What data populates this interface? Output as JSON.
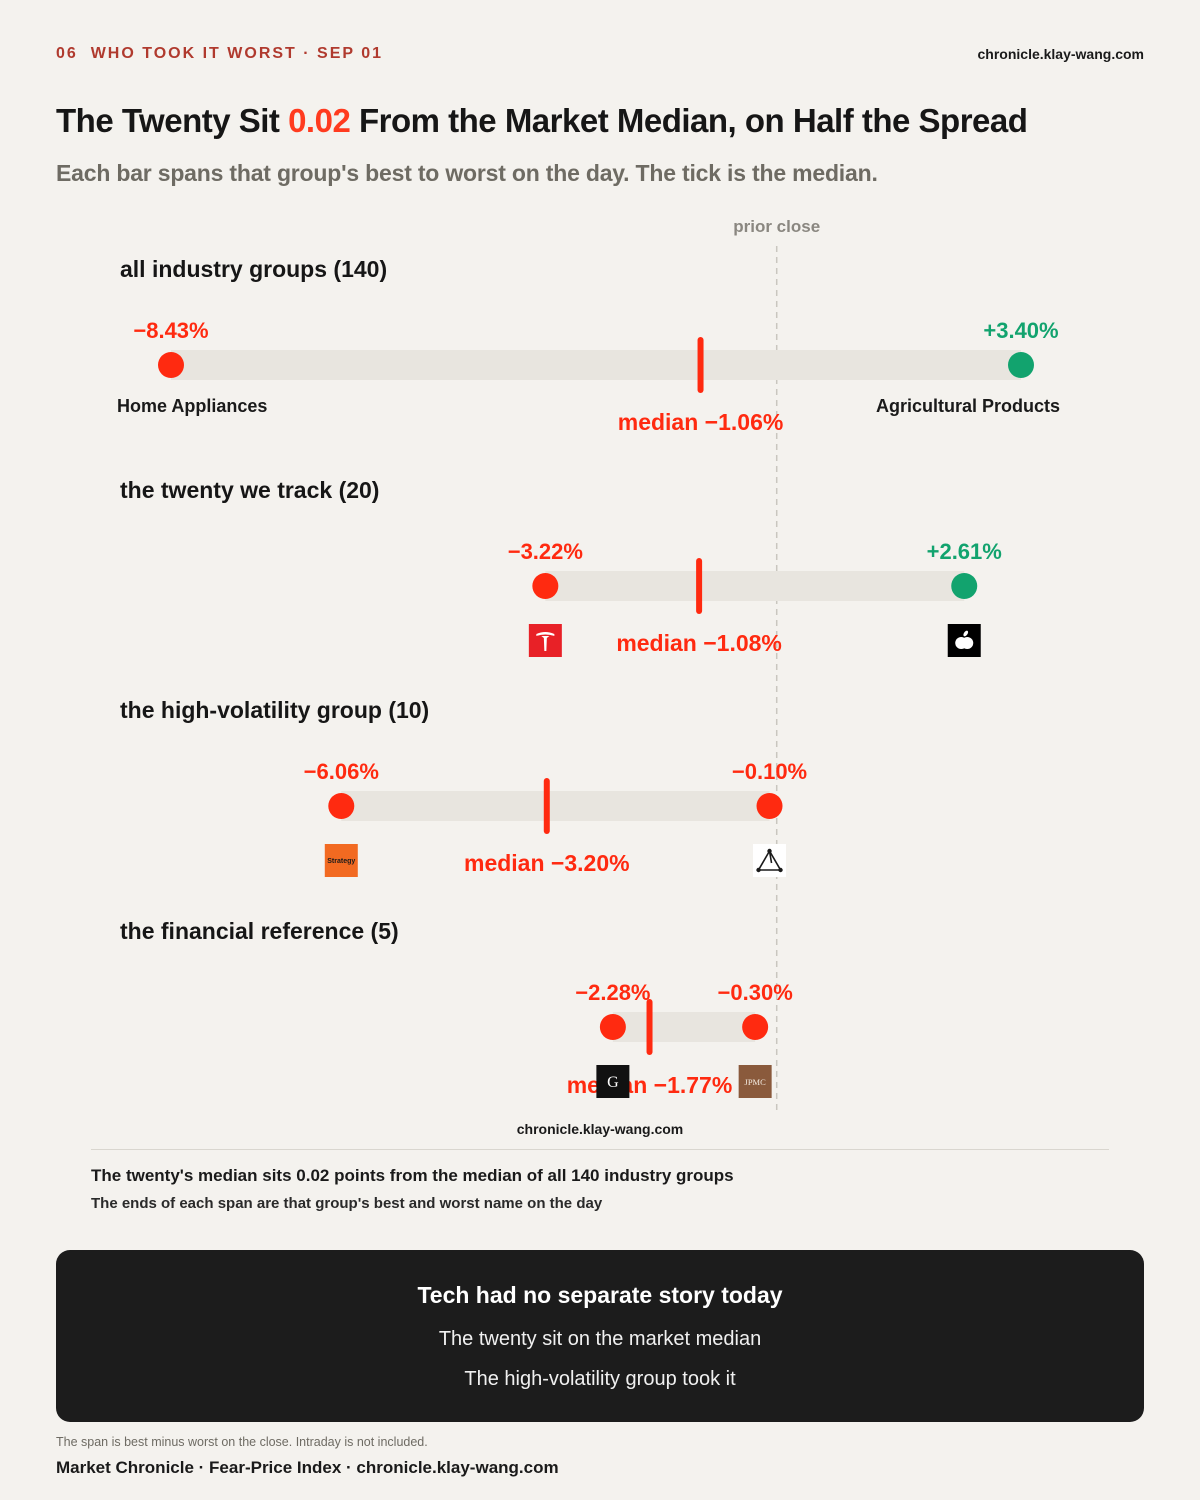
{
  "header": {
    "kicker_number": "06",
    "kicker_text": "WHO TOOK IT WORST · SEP 01",
    "site": "chronicle.klay-wang.com"
  },
  "title": {
    "before": "The Twenty Sit ",
    "highlight": "0.02",
    "after": " From the Market Median, on Half the Spread"
  },
  "subtitle": "Each bar spans that group's best to worst on the day. The tick is the median.",
  "colors": {
    "negative": "#ff2a10",
    "positive": "#12a36e",
    "track": "#e8e5df",
    "reference_line": "#c9c6bf"
  },
  "chart_data": {
    "type": "range",
    "reference_label": "prior close",
    "reference_value": 0,
    "x_domain": [
      -8.43,
      3.4
    ],
    "unit": "%",
    "watermark": "chronicle.klay-wang.com",
    "groups": [
      {
        "label": "all industry groups (140)",
        "min": -8.43,
        "max": 3.4,
        "median": -1.06,
        "min_text": "−8.43%",
        "max_text": "+3.40%",
        "median_text": "median −1.06%",
        "min_name": "Home Appliances",
        "max_name": "Agricultural Products"
      },
      {
        "label": "the twenty we track (20)",
        "min": -3.22,
        "max": 2.61,
        "median": -1.08,
        "min_text": "−3.22%",
        "max_text": "+2.61%",
        "median_text": "median −1.08%",
        "min_icon": "tesla-logo-icon",
        "max_icon": "apple-logo-icon"
      },
      {
        "label": "the high-volatility group (10)",
        "min": -6.06,
        "max": -0.1,
        "median": -3.2,
        "min_text": "−6.06%",
        "max_text": "−0.10%",
        "median_text": "median −3.20%",
        "min_icon": "strategy-logo-icon",
        "max_icon": "triangle-nodes-logo-icon",
        "min_logo_text": "Strategy"
      },
      {
        "label": "the financial reference (5)",
        "min": -2.28,
        "max": -0.3,
        "median": -1.77,
        "min_text": "−2.28%",
        "max_text": "−0.30%",
        "median_text": "median −1.77%",
        "min_icon": "goldman-logo-icon",
        "max_icon": "jpmc-logo-icon",
        "min_logo_text": "G",
        "max_logo_text": "JPMC"
      }
    ]
  },
  "notes": {
    "line1": "The twenty's median sits 0.02 points from the median of all 140 industry groups",
    "line2": "The ends of each span are that group's best and worst name on the day"
  },
  "callout": {
    "title": "Tech had no separate story today",
    "line1": "The twenty sit on the market median",
    "line2": "The high-volatility group took it"
  },
  "footnote": "The span is best minus worst on the close. Intraday is not included.",
  "footer": "Market Chronicle · Fear-Price Index · chronicle.klay-wang.com"
}
